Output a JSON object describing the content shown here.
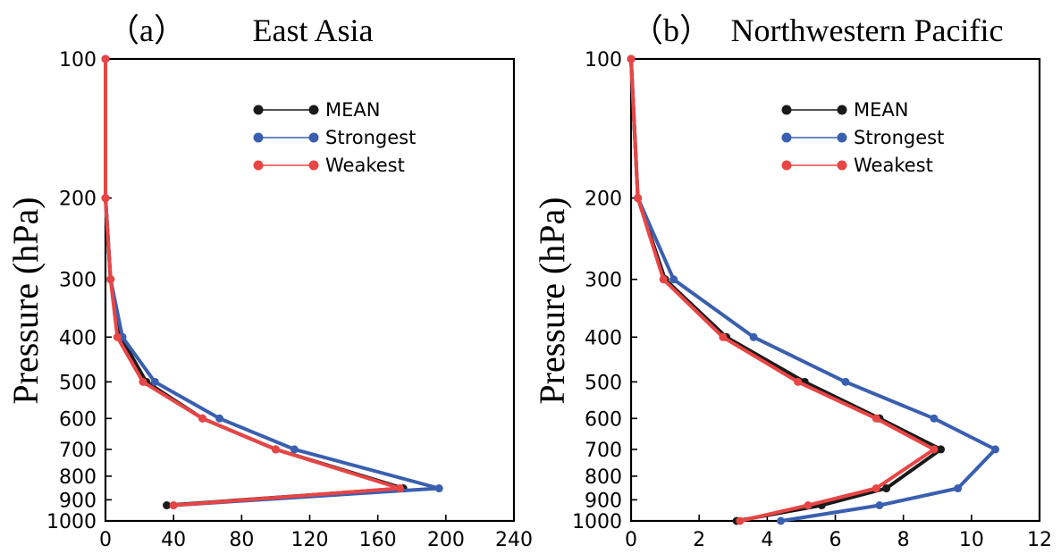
{
  "chart_data": [
    {
      "type": "line",
      "panel_label": "（a）",
      "title": "East Asia",
      "xlabel": "",
      "ylabel": "Pressure (hPa)",
      "xlim": [
        0,
        240
      ],
      "xticks": [
        "0",
        "40",
        "80",
        "120",
        "160",
        "200",
        "240"
      ],
      "ylim": [
        100,
        1000
      ],
      "yscale": "log",
      "yticks": [
        "100",
        "200",
        "300",
        "400",
        "500",
        "600",
        "700",
        "800",
        "900",
        "1000"
      ],
      "legend_position": "top-right",
      "y": [
        100,
        200,
        300,
        400,
        500,
        600,
        700,
        850,
        925
      ],
      "series": [
        {
          "name": "MEAN",
          "color": "#1a1a1a",
          "x": [
            0,
            0,
            3,
            9,
            24,
            57,
            100,
            175,
            36
          ]
        },
        {
          "name": "Strongest",
          "color": "#3a5fb0",
          "x": [
            0,
            0,
            3,
            10,
            29,
            67,
            111,
            196,
            40
          ]
        },
        {
          "name": "Weakest",
          "color": "#e84545",
          "x": [
            0,
            0,
            3,
            7,
            22,
            57,
            100,
            173,
            40
          ]
        }
      ]
    },
    {
      "type": "line",
      "panel_label": "（b）",
      "title": "Northwestern Pacific",
      "xlabel": "",
      "ylabel": "Pressure (hPa)",
      "xlim": [
        0,
        12
      ],
      "xticks": [
        "0",
        "2",
        "4",
        "6",
        "8",
        "10",
        "12"
      ],
      "ylim": [
        100,
        1000
      ],
      "yscale": "log",
      "yticks": [
        "100",
        "200",
        "300",
        "400",
        "500",
        "600",
        "700",
        "800",
        "900",
        "1000"
      ],
      "legend_position": "top-right",
      "y": [
        100,
        200,
        300,
        400,
        500,
        600,
        700,
        850,
        925,
        1000
      ],
      "series": [
        {
          "name": "MEAN",
          "color": "#1a1a1a",
          "x": [
            0,
            0.2,
            1.0,
            2.8,
            5.1,
            7.3,
            9.1,
            7.5,
            5.6,
            3.1
          ]
        },
        {
          "name": "Strongest",
          "color": "#3a5fb0",
          "x": [
            0,
            0.2,
            1.25,
            3.6,
            6.3,
            8.9,
            10.7,
            9.6,
            7.3,
            4.4
          ]
        },
        {
          "name": "Weakest",
          "color": "#e84545",
          "x": [
            0,
            0.2,
            0.95,
            2.7,
            4.9,
            7.2,
            8.9,
            7.2,
            5.2,
            3.2
          ]
        }
      ]
    }
  ]
}
